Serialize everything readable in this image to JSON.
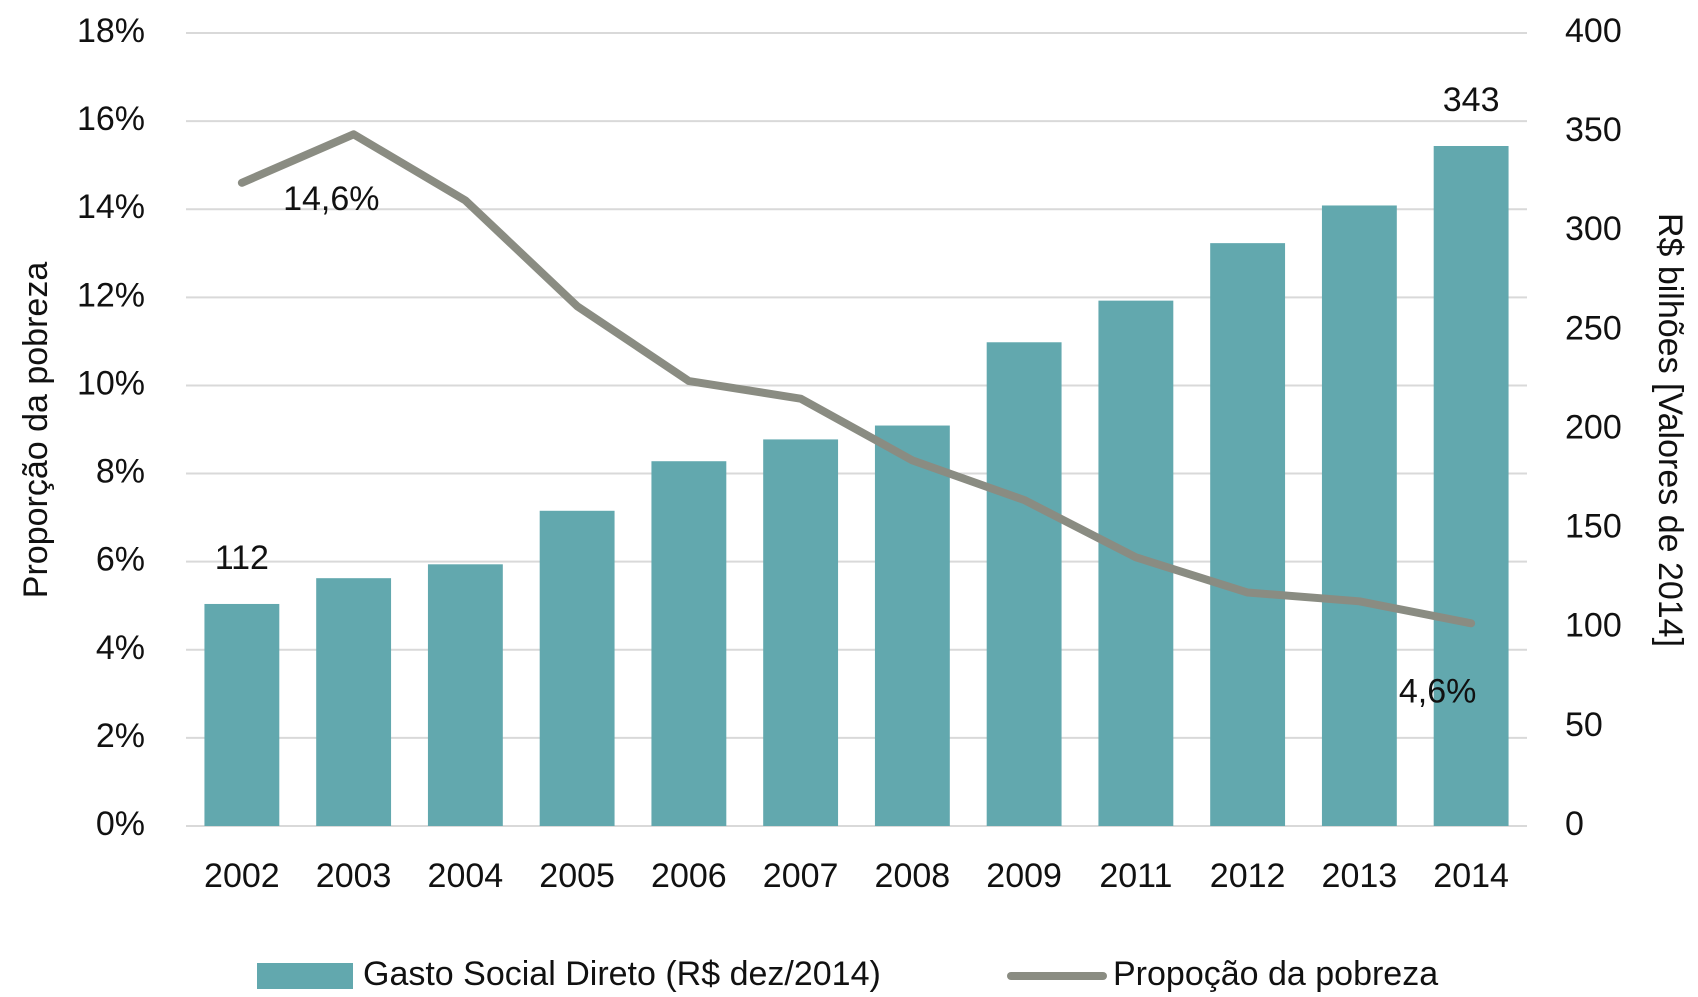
{
  "chart_data": {
    "type": "bar_line",
    "categories": [
      "2002",
      "2003",
      "2004",
      "2005",
      "2006",
      "2007",
      "2008",
      "2009",
      "2011",
      "2012",
      "2013",
      "2014"
    ],
    "series": [
      {
        "name": "Gasto Social Direto (R$ dez/2014)",
        "type": "bar",
        "axis": "y2",
        "color": "#62a8ae",
        "values": [
          112,
          125,
          132,
          159,
          184,
          195,
          202,
          244,
          265,
          294,
          313,
          343
        ],
        "value_labels": [
          "112",
          null,
          null,
          null,
          null,
          null,
          null,
          null,
          null,
          null,
          null,
          "343"
        ]
      },
      {
        "name": "Propoção da pobreza",
        "type": "line",
        "axis": "y",
        "color": "#8a8c82",
        "values": [
          14.6,
          15.7,
          14.2,
          11.8,
          10.1,
          9.7,
          8.3,
          7.4,
          6.1,
          5.3,
          5.1,
          4.6
        ],
        "value_labels": [
          "14,6%",
          null,
          null,
          null,
          null,
          null,
          null,
          null,
          null,
          null,
          null,
          "4,6%"
        ]
      }
    ],
    "ylabel": "Proporção da pobreza",
    "y2label": "R$ bilhões [Valores de 2014]",
    "ylim": [
      0,
      18
    ],
    "yticks": [
      {
        "value": 0,
        "label": "0%"
      },
      {
        "value": 2,
        "label": "2%"
      },
      {
        "value": 4,
        "label": "4%"
      },
      {
        "value": 6,
        "label": "6%"
      },
      {
        "value": 8,
        "label": "8%"
      },
      {
        "value": 10,
        "label": "10%"
      },
      {
        "value": 12,
        "label": "12%"
      },
      {
        "value": 14,
        "label": "14%"
      },
      {
        "value": 16,
        "label": "16%"
      },
      {
        "value": 18,
        "label": "18%"
      }
    ],
    "y2lim": [
      0,
      400
    ],
    "y2ticks": [
      0,
      50,
      100,
      150,
      200,
      250,
      300,
      350,
      400
    ],
    "grid": true,
    "legend": "bottom"
  }
}
